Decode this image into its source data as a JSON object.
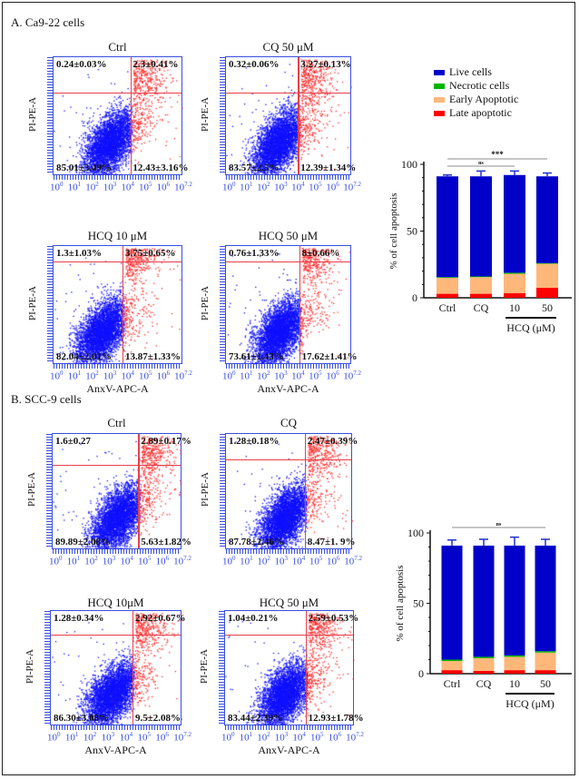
{
  "sections": [
    {
      "label": "A. Ca9-22 cells"
    },
    {
      "label": "B. SCC-9 cells"
    }
  ],
  "flow_axes": {
    "x_label": "AnxV-APC-A",
    "y_label": "PI-PE-A",
    "tick_base": "10",
    "tick_exponents": [
      "0",
      "1",
      "2",
      "3",
      "4",
      "5",
      "6",
      "7.2"
    ]
  },
  "flow_panels": [
    {
      "title": "Ctrl",
      "ul": "0.24±0.03%",
      "ur": "2.3±0.41%",
      "ll": "85.01±3.49%",
      "lr": "12.43±3.16%"
    },
    {
      "title": "CQ 50 μM",
      "ul": "0.32±0.06%",
      "ur": "3.27±0.13%",
      "ll": "83.57±2.5%",
      "lr": "12.39±1.34%"
    },
    {
      "title": "HCQ 10 μM",
      "ul": "1.3±1.03%",
      "ur": "3.75±0.65%",
      "ll": "82.04±2.01%",
      "lr": "13.87±1.33%"
    },
    {
      "title": "HCQ 50 μM",
      "ul": "0.76±1.33%",
      "ur": "8±0.66%",
      "ll": "73.61±1.43%",
      "lr": "17.62±1.41%"
    },
    {
      "title": "Ctrl",
      "ul": "1.6±0.27",
      "ur": "2.89±0.17%",
      "ll": "89.89±2.08%",
      "lr": "5.63±1.82%"
    },
    {
      "title": "CQ",
      "ul": "1.28±0.18%",
      "ur": "2.47±0.39%",
      "ll": "87.78±2.46%",
      "lr": "8.47±1. 9%"
    },
    {
      "title": "HCQ 10μM",
      "ul": "1.28±0.34%",
      "ur": "2.92±0.67%",
      "ll": "86.30±3.08%",
      "lr": "9.5±2.08%"
    },
    {
      "title": "HCQ 50 μM",
      "ul": "1.04±0.21%",
      "ur": "2.59±0.53%",
      "ll": "83.44±2.39%",
      "lr": "12.93±1.78%"
    }
  ],
  "legend": [
    {
      "label": "Live cells",
      "color": "#0000c8"
    },
    {
      "label": "Necrotic cells",
      "color": "#00b400"
    },
    {
      "label": "Early Apoptotic",
      "color": "#ffb77a"
    },
    {
      "label": "Late apoptotic",
      "color": "#ff0000"
    }
  ],
  "chart_data": [
    {
      "type": "bar",
      "stacked": true,
      "ylabel": "% of cell apoptosis",
      "ylim": [
        0,
        100
      ],
      "yticks": [
        "0",
        "50",
        "100"
      ],
      "categories": [
        "Ctrl",
        "CQ",
        "10",
        "50"
      ],
      "group_label": "HCQ (μM)",
      "series": [
        {
          "name": "Late apoptotic",
          "values": [
            3,
            3,
            3.5,
            7.5
          ],
          "errors": [
            1,
            0.5,
            1,
            1
          ]
        },
        {
          "name": "Early Apoptotic",
          "values": [
            12,
            12.5,
            14.5,
            18
          ],
          "errors": [
            1,
            3,
            1.5,
            1.5
          ]
        },
        {
          "name": "Necrotic cells",
          "values": [
            0.5,
            0.5,
            0.8,
            0.5
          ],
          "errors": [
            0.5,
            0.5,
            0.5,
            0.5
          ]
        },
        {
          "name": "Live cells",
          "values": [
            75.5,
            75,
            73.2,
            65
          ],
          "errors": [
            1,
            4,
            3,
            2.5
          ]
        }
      ],
      "annotations": [
        {
          "text": "***",
          "from": "Ctrl",
          "to": "50"
        },
        {
          "text": "ns",
          "from": "Ctrl",
          "to": "10"
        }
      ]
    },
    {
      "type": "bar",
      "stacked": true,
      "ylabel": "% of cell apoptosis",
      "ylim": [
        0,
        100
      ],
      "yticks": [
        "0",
        "50",
        "100"
      ],
      "categories": [
        "Ctrl",
        "CQ",
        "10",
        "50"
      ],
      "group_label": "HCQ (μM)",
      "series": [
        {
          "name": "Late apoptotic",
          "values": [
            2.5,
            2,
            2.5,
            2.5
          ],
          "errors": [
            0.8,
            1,
            1.5,
            1
          ]
        },
        {
          "name": "Early Apoptotic",
          "values": [
            6.5,
            9,
            9.5,
            12.5
          ],
          "errors": [
            2.5,
            2.5,
            3,
            2.5
          ]
        },
        {
          "name": "Necrotic cells",
          "values": [
            1,
            1,
            1,
            1
          ],
          "errors": [
            0.5,
            0.5,
            0.5,
            0.5
          ]
        },
        {
          "name": "Live cells",
          "values": [
            81,
            79,
            78,
            75
          ],
          "errors": [
            4,
            4.5,
            6,
            4.5
          ]
        }
      ],
      "annotations": [
        {
          "text": "ns",
          "from": "Ctrl",
          "to": "50"
        }
      ]
    }
  ]
}
